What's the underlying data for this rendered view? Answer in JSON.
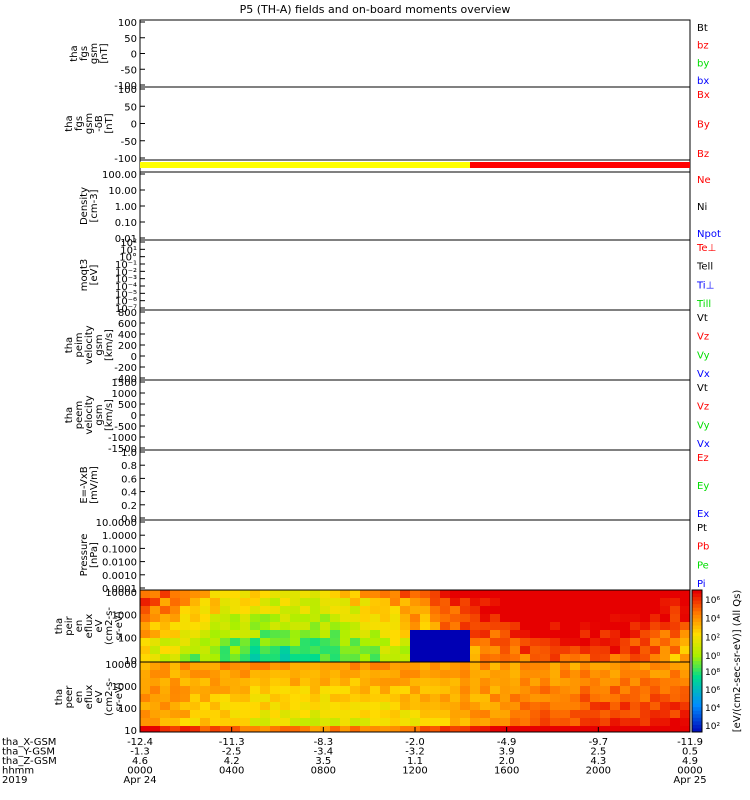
{
  "title": "P5 (TH-A) fields and on-board moments overview",
  "colors": {
    "black": "#000000",
    "red": "#ff0000",
    "green": "#00dd00",
    "blue": "#0000ff",
    "yellow": "#ffff00",
    "axis": "#000000"
  },
  "chart_data": [
    {
      "type": "line",
      "ylabel": [
        "tha",
        "fgs",
        "gsm",
        "[nT]"
      ],
      "yticks": [
        "100",
        "50",
        "0",
        "-50",
        "-100"
      ],
      "ylim": [
        -100,
        100
      ],
      "legend": [
        {
          "text": "Bt",
          "color": "black"
        },
        {
          "text": "bz",
          "color": "red"
        },
        {
          "text": "by",
          "color": "green"
        },
        {
          "text": "bx",
          "color": "blue"
        }
      ]
    },
    {
      "type": "line",
      "ylabel": [
        "tha",
        "fgs",
        "gsm",
        "-δB",
        "[nT]"
      ],
      "yticks": [
        "100",
        "50",
        "0",
        "-50",
        "-100"
      ],
      "ylim": [
        -125,
        125
      ],
      "legend": [
        {
          "text": "Bx",
          "color": "red"
        },
        {
          "text": "By",
          "color": "red"
        },
        {
          "text": "Bz",
          "color": "red"
        }
      ]
    },
    {
      "type": "bar",
      "ylabel": [],
      "yticks": [],
      "legend": []
    },
    {
      "type": "line",
      "ylabel": [
        "Density",
        "[cm-3]"
      ],
      "yticks": [
        "100.00",
        "10.00",
        "1.00",
        "0.10",
        "0.01"
      ],
      "log": true,
      "legend": [
        {
          "text": "Ne",
          "color": "red"
        },
        {
          "text": "Ni",
          "color": "black"
        },
        {
          "text": "Npot",
          "color": "blue"
        }
      ]
    },
    {
      "type": "line",
      "ylabel": [
        "moqt3",
        "[eV]"
      ],
      "yticks": [
        "10²",
        "10¹",
        "10°",
        "10⁻¹",
        "10⁻²",
        "10⁻³",
        "10⁻⁴",
        "10⁻⁵",
        "10⁻⁶",
        "10⁻⁷"
      ],
      "log": true,
      "legend": [
        {
          "text": "Te⊥",
          "color": "red"
        },
        {
          "text": "Tell",
          "color": "black"
        },
        {
          "text": "Ti⊥",
          "color": "blue"
        },
        {
          "text": "Till",
          "color": "green"
        }
      ]
    },
    {
      "type": "line",
      "ylabel": [
        "tha",
        "peim",
        "velocity",
        "gsm",
        "[km/s]"
      ],
      "yticks": [
        "800",
        "600",
        "400",
        "200",
        "0",
        "-200",
        "-400"
      ],
      "ylim": [
        -400,
        800
      ],
      "legend": [
        {
          "text": "Vt",
          "color": "black"
        },
        {
          "text": "Vz",
          "color": "red"
        },
        {
          "text": "Vy",
          "color": "green"
        },
        {
          "text": "Vx",
          "color": "blue"
        }
      ]
    },
    {
      "type": "line",
      "ylabel": [
        "tha",
        "peem",
        "velocity",
        "gsm",
        "[km/s]"
      ],
      "yticks": [
        "1500",
        "1000",
        "500",
        "0",
        "-500",
        "-1000",
        "-1500"
      ],
      "ylim": [
        -1500,
        1500
      ],
      "legend": [
        {
          "text": "Vt",
          "color": "black"
        },
        {
          "text": "Vz",
          "color": "red"
        },
        {
          "text": "Vy",
          "color": "green"
        },
        {
          "text": "Vx",
          "color": "blue"
        }
      ]
    },
    {
      "type": "line",
      "ylabel": [
        "E=-VxB",
        "[mV/m]"
      ],
      "yticks": [
        "1.0",
        "0.8",
        "0.6",
        "0.4",
        "0.2",
        "0.0"
      ],
      "ylim": [
        0,
        1
      ],
      "legend": [
        {
          "text": "Ez",
          "color": "red"
        },
        {
          "text": "Ey",
          "color": "green"
        },
        {
          "text": "Ex",
          "color": "blue"
        }
      ]
    },
    {
      "type": "line",
      "ylabel": [
        "Pressure",
        "[nPa]"
      ],
      "yticks": [
        "10.0000",
        "1.0000",
        "0.1000",
        "0.0100",
        "0.0010",
        "0.0001"
      ],
      "log": true,
      "legend": [
        {
          "text": "Pt",
          "color": "black"
        },
        {
          "text": "Pb",
          "color": "red"
        },
        {
          "text": "Pe",
          "color": "green"
        },
        {
          "text": "Pi",
          "color": "blue"
        }
      ]
    },
    {
      "type": "heatmap",
      "ylabel": [
        "tha",
        "peir",
        "en",
        "eflux",
        "eV",
        "(cm2-s-",
        "sr-eV)"
      ],
      "yticks": [
        "10000",
        "1000",
        "100",
        "10"
      ],
      "log": true,
      "legend": []
    },
    {
      "type": "heatmap",
      "ylabel": [
        "tha",
        "peer",
        "en",
        "eflux",
        "eV",
        "(cm2-s-",
        "sr-eV)"
      ],
      "yticks": [
        "10000",
        "1000",
        "100",
        "10"
      ],
      "log": true,
      "legend": []
    }
  ],
  "colorbar": {
    "label": "[eV/(cm2-sec-sr-eV)] (All Qs)",
    "ticks_top": [
      "10⁶",
      "10⁴",
      "10²",
      "10⁰"
    ],
    "ticks_bottom": [
      "10⁸",
      "10⁶",
      "10⁴",
      "10²"
    ]
  },
  "xaxis": {
    "row_labels": [
      "tha_X-GSM",
      "tha_Y-GSM",
      "tha_Z-GSM",
      "hhmm",
      "2019"
    ],
    "columns": [
      {
        "X": "-12.4",
        "Y": "-1.3",
        "Z": "4.6",
        "hhmm": "0000",
        "date": "Apr 24"
      },
      {
        "X": "-11.3",
        "Y": "-2.5",
        "Z": "4.2",
        "hhmm": "0400",
        "date": ""
      },
      {
        "X": "-8.3",
        "Y": "-3.4",
        "Z": "3.5",
        "hhmm": "0800",
        "date": ""
      },
      {
        "X": "-2.0",
        "Y": "-3.2",
        "Z": "1.1",
        "hhmm": "1200",
        "date": ""
      },
      {
        "X": "-4.9",
        "Y": "3.9",
        "Z": "2.0",
        "hhmm": "1600",
        "date": ""
      },
      {
        "X": "-9.7",
        "Y": "2.5",
        "Z": "4.3",
        "hhmm": "2000",
        "date": ""
      },
      {
        "X": "-11.9",
        "Y": "0.5",
        "Z": "4.9",
        "hhmm": "0000",
        "date": "Apr 25"
      }
    ]
  }
}
